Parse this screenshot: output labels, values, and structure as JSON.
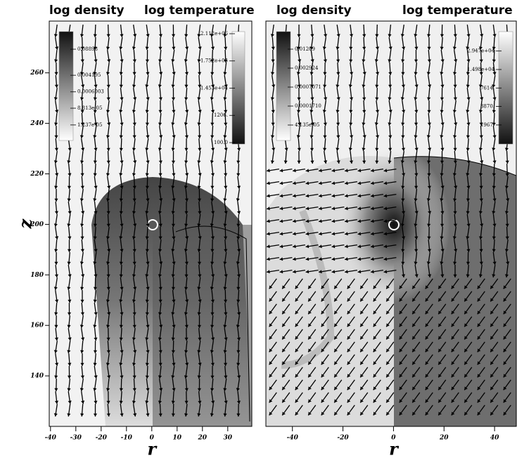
{
  "chart_data": [
    {
      "type": "field",
      "titles": [
        "log density",
        "log temperature"
      ],
      "xlabel": "r",
      "ylabel": "z",
      "xlim": [
        -40.5,
        39.5
      ],
      "xticks": [
        -40,
        -30,
        -20,
        -10,
        0,
        10,
        20,
        30
      ],
      "ylim": [
        120,
        280.5
      ],
      "yticks": [
        140,
        160,
        180,
        200,
        220,
        240,
        260
      ],
      "colorbars": [
        {
          "log": true,
          "clim": [
            2e-06,
            0.7
          ],
          "colors": [
            "#ffffff",
            "#111111"
          ],
          "ticks": [
            0.08898,
            0.004195,
            0.0006003,
            {
              "value": 8.813e-05,
              "label": "8.813e-05"
            },
            {
              "value": 1.237e-05,
              "label": "1.237e-05"
            }
          ]
        },
        {
          "log": true,
          "clim": [
            88,
            2560000
          ],
          "colors": [
            "#111111",
            "#ffffff"
          ],
          "ticks": [
            {
              "value": 2112000,
              "label": "2.112e+06"
            },
            {
              "value": 175200,
              "label": "1.752e+05"
            },
            {
              "value": 14530,
              "label": "1.453e+04"
            },
            {
              "value": 1206,
              "label": "1206."
            },
            {
              "value": 100,
              "label": "100.0"
            }
          ]
        }
      ]
    },
    {
      "type": "field",
      "titles": [
        "log density",
        "log temperature"
      ],
      "xlabel": "r",
      "xlim": [
        -50.5,
        48.6
      ],
      "xticks": [
        -40,
        -20,
        0,
        20,
        40
      ],
      "ylim": [
        120,
        280.5
      ],
      "colorbars": [
        {
          "log": true,
          "clim": [
            1.3e-05,
            0.045
          ],
          "colors": [
            "#ffffff",
            "#111111"
          ],
          "ticks": [
            0.01209,
            0.002924,
            0.0007071,
            {
              "value": 0.000171,
              "label": "0.0001710"
            },
            {
              "value": 4.135e-05,
              "label": "4.135e-05"
            }
          ]
        },
        {
          "log": true,
          "clim": [
            980,
            60000
          ],
          "colors": [
            "#111111",
            "#ffffff"
          ],
          "ticks": [
            {
              "value": 29470,
              "label": "2.947e+04"
            },
            {
              "value": 14980,
              "label": "1.498e+04"
            },
            {
              "value": 7614,
              "label": "7614."
            },
            {
              "value": 3870,
              "label": "3870."
            },
            {
              "value": 1967,
              "label": "1967."
            }
          ]
        }
      ]
    }
  ]
}
